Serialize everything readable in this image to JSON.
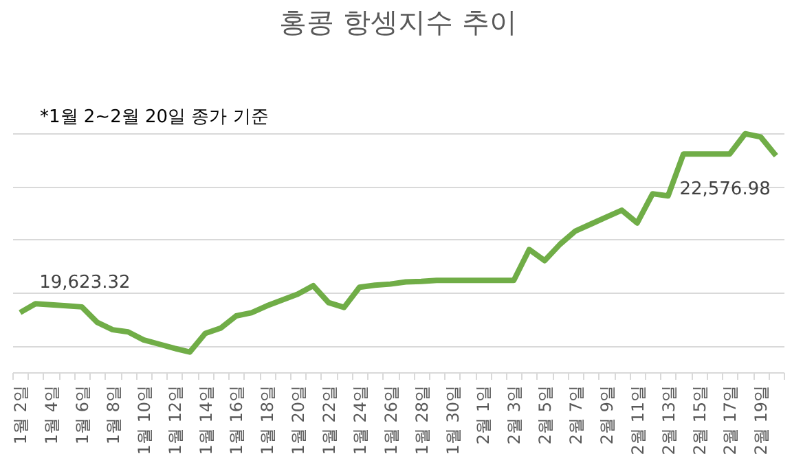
{
  "chart_data": {
    "type": "line",
    "title": "홍콩 항셍지수 추이",
    "annotations": [
      "*1월 2~2월 20일 종가 기준"
    ],
    "categories": [
      "1월 2일",
      null,
      "1월 4일",
      null,
      "1월 6일",
      null,
      "1월 8일",
      null,
      "1월 10일",
      null,
      "1월 12일",
      null,
      "1월 14일",
      null,
      "1월 16일",
      null,
      "1월 18일",
      null,
      "1월 20일",
      null,
      "1월 22일",
      null,
      "1월 24일",
      null,
      "1월 26일",
      null,
      "1월 28일",
      null,
      "1월 30일",
      null,
      "2월 1일",
      null,
      "2월 3일",
      null,
      "2월 5일",
      null,
      "2월 7일",
      null,
      "2월 9일",
      null,
      "2월 11일",
      null,
      "2월 13일",
      null,
      "2월 15일",
      null,
      "2월 17일",
      null,
      "2월 19일",
      null
    ],
    "values": [
      19623.32,
      19790,
      19770,
      19750,
      19730,
      19440,
      19300,
      19260,
      19110,
      19030,
      18950,
      18880,
      19230,
      19330,
      19560,
      19620,
      19750,
      19860,
      19970,
      20130,
      19810,
      19720,
      20100,
      20140,
      20160,
      20200,
      20210,
      20230,
      20230,
      20230,
      20230,
      20230,
      20230,
      20810,
      20600,
      20910,
      21160,
      21290,
      21420,
      21550,
      21310,
      21860,
      21820,
      22610,
      22610,
      22610,
      22610,
      22990,
      22930,
      22576.98
    ],
    "value_labels": [
      "19,623.32",
      null,
      null,
      null,
      null,
      null,
      null,
      null,
      null,
      null,
      null,
      null,
      null,
      null,
      null,
      null,
      null,
      null,
      null,
      null,
      null,
      null,
      null,
      null,
      null,
      null,
      null,
      null,
      null,
      null,
      null,
      null,
      null,
      null,
      null,
      null,
      null,
      null,
      null,
      null,
      null,
      null,
      null,
      null,
      null,
      null,
      null,
      null,
      null,
      "22,576.98"
    ],
    "color": "#70ad47",
    "line_style": "solid",
    "grid": "y",
    "tick_labels": "x"
  }
}
